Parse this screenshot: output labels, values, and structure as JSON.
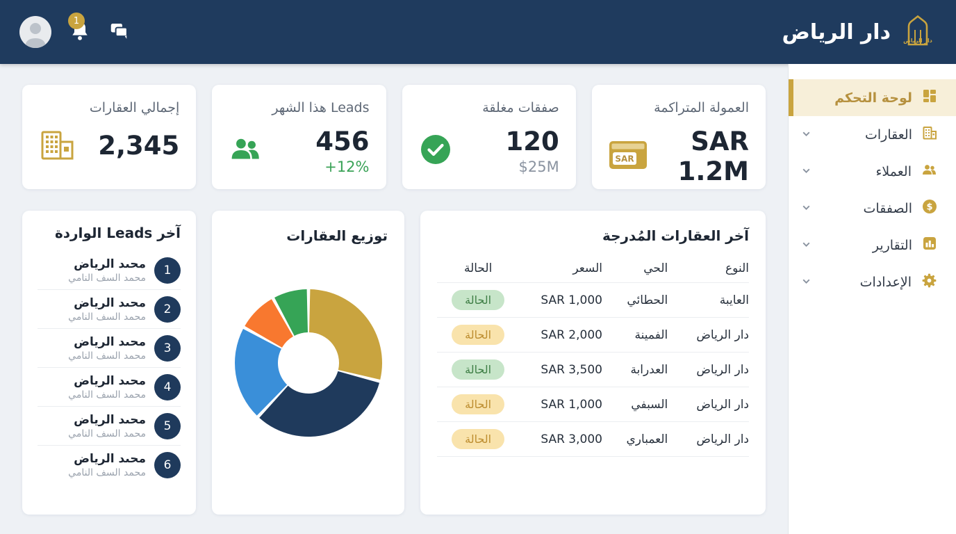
{
  "topbar": {
    "brand": "دار الرياض",
    "notification_badge": "1"
  },
  "sidebar": {
    "items": [
      {
        "label": "لوحة التحكم",
        "icon": "dashboard-grid",
        "active": true
      },
      {
        "label": "العقارات",
        "icon": "building"
      },
      {
        "label": "العملاء",
        "icon": "people"
      },
      {
        "label": "الصفقات",
        "icon": "dollar-circle"
      },
      {
        "label": "التقارير",
        "icon": "bar-chart"
      },
      {
        "label": "الإعدادات",
        "icon": "gear"
      }
    ]
  },
  "kpis": [
    {
      "title": "العمولة المتراكمة",
      "value": "SAR 1.2M",
      "sub": "",
      "sub_class": "hidden",
      "icon": "sar-banknote"
    },
    {
      "title": "صفقات مغلقة",
      "value": "120",
      "sub": "$25M",
      "sub_class": "muted",
      "icon": "check-circle"
    },
    {
      "title": "Leads هذا الشهر",
      "value": "456",
      "sub": "+12%",
      "sub_class": "green",
      "icon": "people"
    },
    {
      "title": "إجمالي العقارات",
      "value": "2,345",
      "sub": "",
      "sub_class": "hidden",
      "icon": "building"
    }
  ],
  "table": {
    "title": "آخر العقارات المُدرجة",
    "columns": [
      "النوع",
      "الحي",
      "السعر",
      "الحالة"
    ],
    "rows": [
      {
        "type": "العايبة",
        "district": "الحطائي",
        "price": "SAR 1,000",
        "status": "الحالة",
        "status_color": "green"
      },
      {
        "type": "دار الرياض",
        "district": "الفمينة",
        "price": "SAR 2,000",
        "status": "الحالة",
        "status_color": "amber"
      },
      {
        "type": "دار الرياض",
        "district": "العدرابة",
        "price": "SAR 3,500",
        "status": "الحالة",
        "status_color": "green"
      },
      {
        "type": "دار الرياض",
        "district": "السبفي",
        "price": "SAR 1,000",
        "status": "الحالة",
        "status_color": "amber"
      },
      {
        "type": "دار الرياض",
        "district": "العمباري",
        "price": "SAR 3,000",
        "status": "الحالة",
        "status_color": "amber"
      }
    ]
  },
  "chart_data": {
    "type": "pie",
    "title": "توزيع العقارات",
    "donut": true,
    "legend": "none",
    "labels_visible": false,
    "segments": [
      {
        "value": 29,
        "color": "#C9A43F"
      },
      {
        "value": 33,
        "color": "#1F3A5C"
      },
      {
        "value": 21,
        "color": "#3A8FD9"
      },
      {
        "value": 9,
        "color": "#F8782F"
      },
      {
        "value": 8,
        "color": "#36A456"
      }
    ]
  },
  "leads": {
    "title": "آخر Leads الواردة",
    "items": [
      {
        "num": "1",
        "name": "محىد الرياض",
        "sub": "محمد السف النامي"
      },
      {
        "num": "2",
        "name": "محىد الرياض",
        "sub": "محمد السف النامي"
      },
      {
        "num": "3",
        "name": "محىد الرياض",
        "sub": "محمد السف النامي"
      },
      {
        "num": "4",
        "name": "محىد الرياض",
        "sub": "محمد السف النامي"
      },
      {
        "num": "5",
        "name": "محىد الرياض",
        "sub": "محمد السف النامي"
      },
      {
        "num": "6",
        "name": "محىد الرياض",
        "sub": "محمد السف النامي"
      }
    ]
  },
  "colors": {
    "navy": "#1F3A5C",
    "gold": "#C9A43F",
    "green": "#36A456",
    "active_bg": "#F7EFD9"
  }
}
